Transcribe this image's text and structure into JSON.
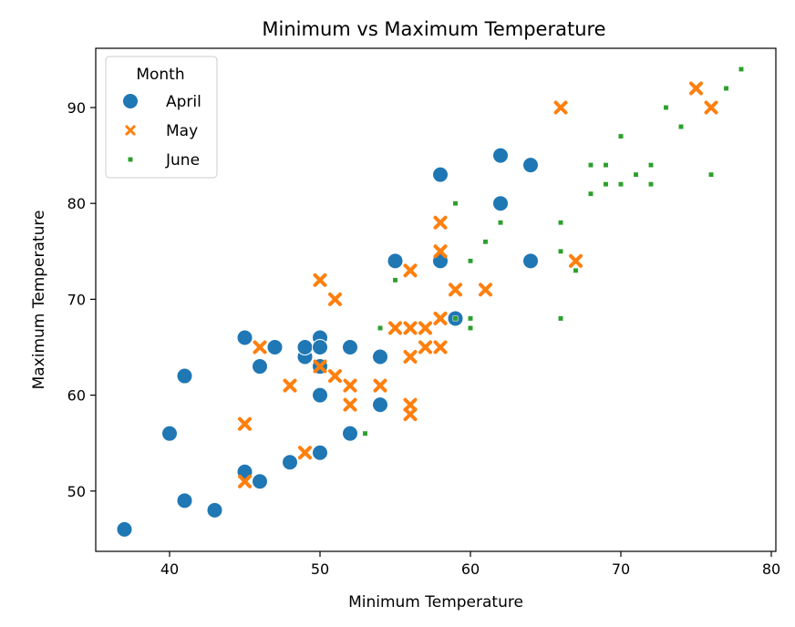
{
  "chart_data": {
    "type": "scatter",
    "title": "Minimum vs Maximum Temperature",
    "xlabel": "Minimum Temperature",
    "ylabel": "Maximum Temperature",
    "xlim": [
      35,
      80.5
    ],
    "ylim": [
      43.8,
      96
    ],
    "xticks": [
      40,
      50,
      60,
      70,
      80
    ],
    "yticks": [
      50,
      60,
      70,
      80,
      90
    ],
    "grid": false,
    "legend": {
      "title": "Month",
      "placement": "top-left"
    },
    "series": [
      {
        "name": "April",
        "marker": "circle",
        "color": "#1f77b4",
        "points": [
          [
            37,
            46
          ],
          [
            40,
            56
          ],
          [
            41,
            62
          ],
          [
            41,
            49
          ],
          [
            43,
            48
          ],
          [
            45,
            66
          ],
          [
            45,
            52
          ],
          [
            46,
            63
          ],
          [
            46,
            51
          ],
          [
            47,
            65
          ],
          [
            48,
            53
          ],
          [
            49,
            64
          ],
          [
            49,
            65
          ],
          [
            50,
            66
          ],
          [
            50,
            65
          ],
          [
            50,
            63
          ],
          [
            50,
            60
          ],
          [
            50,
            54
          ],
          [
            52,
            65
          ],
          [
            52,
            56
          ],
          [
            54,
            64
          ],
          [
            54,
            59
          ],
          [
            55,
            74
          ],
          [
            58,
            83
          ],
          [
            58,
            74
          ],
          [
            59,
            68
          ],
          [
            62,
            85
          ],
          [
            62,
            80
          ],
          [
            64,
            84
          ],
          [
            64,
            74
          ]
        ]
      },
      {
        "name": "May",
        "marker": "x",
        "color": "#ff7f0e",
        "points": [
          [
            45,
            57
          ],
          [
            45,
            51
          ],
          [
            46,
            65
          ],
          [
            48,
            61
          ],
          [
            49,
            54
          ],
          [
            50,
            72
          ],
          [
            50,
            63
          ],
          [
            51,
            70
          ],
          [
            51,
            62
          ],
          [
            52,
            61
          ],
          [
            52,
            59
          ],
          [
            54,
            61
          ],
          [
            55,
            67
          ],
          [
            56,
            73
          ],
          [
            56,
            67
          ],
          [
            56,
            64
          ],
          [
            56,
            59
          ],
          [
            56,
            58
          ],
          [
            57,
            67
          ],
          [
            57,
            65
          ],
          [
            58,
            78
          ],
          [
            58,
            75
          ],
          [
            58,
            68
          ],
          [
            58,
            65
          ],
          [
            59,
            71
          ],
          [
            61,
            71
          ],
          [
            66,
            90
          ],
          [
            67,
            74
          ],
          [
            75,
            92
          ],
          [
            76,
            90
          ]
        ]
      },
      {
        "name": "June",
        "marker": "square",
        "color": "#2ca02c",
        "points": [
          [
            53,
            56
          ],
          [
            54,
            67
          ],
          [
            55,
            72
          ],
          [
            59,
            80
          ],
          [
            59,
            68
          ],
          [
            60,
            74
          ],
          [
            60,
            68
          ],
          [
            60,
            67
          ],
          [
            61,
            76
          ],
          [
            62,
            78
          ],
          [
            66,
            78
          ],
          [
            66,
            75
          ],
          [
            66,
            68
          ],
          [
            67,
            73
          ],
          [
            68,
            84
          ],
          [
            68,
            81
          ],
          [
            69,
            84
          ],
          [
            69,
            82
          ],
          [
            70,
            87
          ],
          [
            70,
            82
          ],
          [
            71,
            83
          ],
          [
            72,
            84
          ],
          [
            72,
            82
          ],
          [
            73,
            90
          ],
          [
            74,
            88
          ],
          [
            76,
            83
          ],
          [
            77,
            92
          ],
          [
            78,
            94
          ]
        ]
      }
    ]
  }
}
